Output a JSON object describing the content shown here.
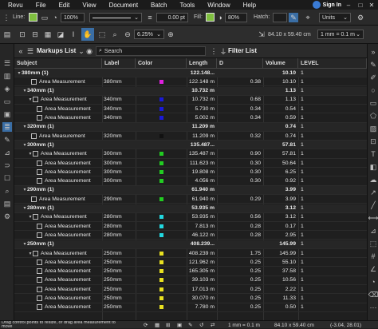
{
  "menu": [
    "Revu",
    "File",
    "Edit",
    "View",
    "Document",
    "Batch",
    "Tools",
    "Window",
    "Help"
  ],
  "signin": "Sign In",
  "toolbar1": {
    "line_label": "Line:",
    "line_color": "#7fbf3f",
    "opacity": "100%",
    "line_width": "0.00 pt",
    "fill_label": "Fill:",
    "fill_color": "#7fbf3f",
    "fill_opacity": "80%",
    "hatch_label": "Hatch:",
    "units_label": "Units"
  },
  "toolbar2": {
    "zoom": "6.25%",
    "page_size": "84.10 x 59.40 cm",
    "scale": "1 mm = 0.1 m"
  },
  "panel": {
    "title": "Markups List",
    "search_placeholder": "Search",
    "filter_title": "Filter List"
  },
  "columns": [
    "Subject",
    "Label",
    "Color",
    "Length",
    "D",
    "Volume",
    "LEVEL"
  ],
  "rows": [
    {
      "type": "group",
      "indent": 0,
      "subject": "380mm (1)",
      "label": "",
      "color": "",
      "length": "122.148...",
      "d": "",
      "volume": "10.10",
      "level": "1"
    },
    {
      "type": "item",
      "indent": 2,
      "subject": "Area Measurement",
      "label": "380mm",
      "color": "#e020e0",
      "length": "122.148 m",
      "d": "0.38",
      "volume": "10.10",
      "level": "1"
    },
    {
      "type": "group",
      "indent": 1,
      "subject": "340mm (1)",
      "label": "",
      "color": "",
      "length": "10.732 m",
      "d": "",
      "volume": "1.13",
      "level": "1"
    },
    {
      "type": "sub",
      "indent": 2,
      "subject": "Area Measurement",
      "label": "340mm",
      "color": "#1a1ad8",
      "length": "10.732 m",
      "d": "0.68",
      "volume": "1.13",
      "level": "1"
    },
    {
      "type": "item",
      "indent": 3,
      "subject": "Area Measurement",
      "label": "340mm",
      "color": "#1a1ad8",
      "length": "5.730 m",
      "d": "0.34",
      "volume": "0.54",
      "level": "1"
    },
    {
      "type": "item",
      "indent": 3,
      "subject": "Area Measurement",
      "label": "340mm",
      "color": "#1a1ad8",
      "length": "5.002 m",
      "d": "0.34",
      "volume": "0.59",
      "level": "1"
    },
    {
      "type": "group",
      "indent": 1,
      "subject": "320mm (1)",
      "label": "",
      "color": "",
      "length": "11.209 m",
      "d": "",
      "volume": "0.74",
      "level": "1"
    },
    {
      "type": "item",
      "indent": 2,
      "subject": "Area Measurement",
      "label": "320mm",
      "color": "#111111",
      "length": "11.209 m",
      "d": "0.32",
      "volume": "0.74",
      "level": "1"
    },
    {
      "type": "group",
      "indent": 1,
      "subject": "300mm (1)",
      "label": "",
      "color": "",
      "length": "135.487...",
      "d": "",
      "volume": "57.81",
      "level": "1"
    },
    {
      "type": "sub",
      "indent": 2,
      "subject": "Area Measurement",
      "label": "300mm",
      "color": "#22cc22",
      "length": "135.487 m",
      "d": "0.90",
      "volume": "57.81",
      "level": "1"
    },
    {
      "type": "item",
      "indent": 3,
      "subject": "Area Measurement",
      "label": "300mm",
      "color": "#22cc22",
      "length": "111.623 m",
      "d": "0.30",
      "volume": "50.64",
      "level": "1"
    },
    {
      "type": "item",
      "indent": 3,
      "subject": "Area Measurement",
      "label": "300mm",
      "color": "#22cc22",
      "length": "19.808 m",
      "d": "0.30",
      "volume": "6.25",
      "level": "1"
    },
    {
      "type": "item",
      "indent": 3,
      "subject": "Area Measurement",
      "label": "300mm",
      "color": "#22cc22",
      "length": "4.056 m",
      "d": "0.30",
      "volume": "0.92",
      "level": "1"
    },
    {
      "type": "group",
      "indent": 1,
      "subject": "290mm (1)",
      "label": "",
      "color": "",
      "length": "61.940 m",
      "d": "",
      "volume": "3.99",
      "level": "1"
    },
    {
      "type": "item",
      "indent": 2,
      "subject": "Area Measurement",
      "label": "290mm",
      "color": "#22cc22",
      "length": "61.940 m",
      "d": "0.29",
      "volume": "3.99",
      "level": "1"
    },
    {
      "type": "group",
      "indent": 1,
      "subject": "280mm (1)",
      "label": "",
      "color": "",
      "length": "53.935 m",
      "d": "",
      "volume": "3.12",
      "level": "1"
    },
    {
      "type": "sub",
      "indent": 2,
      "subject": "Area Measurement",
      "label": "280mm",
      "color": "#22d8e0",
      "length": "53.935 m",
      "d": "0.56",
      "volume": "3.12",
      "level": "1"
    },
    {
      "type": "item",
      "indent": 3,
      "subject": "Area Measurement",
      "label": "280mm",
      "color": "#22d8e0",
      "length": "7.813 m",
      "d": "0.28",
      "volume": "0.17",
      "level": "1"
    },
    {
      "type": "item",
      "indent": 3,
      "subject": "Area Measurement",
      "label": "280mm",
      "color": "#22d8e0",
      "length": "46.122 m",
      "d": "0.28",
      "volume": "2.95",
      "level": "1"
    },
    {
      "type": "group",
      "indent": 1,
      "subject": "250mm (1)",
      "label": "",
      "color": "",
      "length": "408.239...",
      "d": "",
      "volume": "145.99",
      "level": "1"
    },
    {
      "type": "sub",
      "indent": 2,
      "subject": "Area Measurement",
      "label": "250mm",
      "color": "#e8e020",
      "length": "408.239 m",
      "d": "1.75",
      "volume": "145.99",
      "level": "1"
    },
    {
      "type": "item",
      "indent": 3,
      "subject": "Area Measurement",
      "label": "250mm",
      "color": "#e8e020",
      "length": "121.962 m",
      "d": "0.25",
      "volume": "55.10",
      "level": "1"
    },
    {
      "type": "item",
      "indent": 3,
      "subject": "Area Measurement",
      "label": "250mm",
      "color": "#e8e020",
      "length": "165.305 m",
      "d": "0.25",
      "volume": "37.58",
      "level": "1"
    },
    {
      "type": "item",
      "indent": 3,
      "subject": "Area Measurement",
      "label": "250mm",
      "color": "#e8e020",
      "length": "39.103 m",
      "d": "0.25",
      "volume": "10.56",
      "level": "1"
    },
    {
      "type": "item",
      "indent": 3,
      "subject": "Area Measurement",
      "label": "250mm",
      "color": "#e8e020",
      "length": "17.013 m",
      "d": "0.25",
      "volume": "2.22",
      "level": "1"
    },
    {
      "type": "item",
      "indent": 3,
      "subject": "Area Measurement",
      "label": "250mm",
      "color": "#e8e020",
      "length": "30.070 m",
      "d": "0.25",
      "volume": "11.33",
      "level": "1"
    },
    {
      "type": "item",
      "indent": 3,
      "subject": "Area Measurement",
      "label": "250mm",
      "color": "#e8e020",
      "length": "7.780 m",
      "d": "0.25",
      "volume": "0.50",
      "level": "1"
    }
  ],
  "status": {
    "hint": "Drag control points to resize, or drag area measurement to move",
    "scale": "1 mm = 0.1 m",
    "page_size": "84.10 x 59.40 cm",
    "coords": "(-3.04, 28.01)"
  }
}
